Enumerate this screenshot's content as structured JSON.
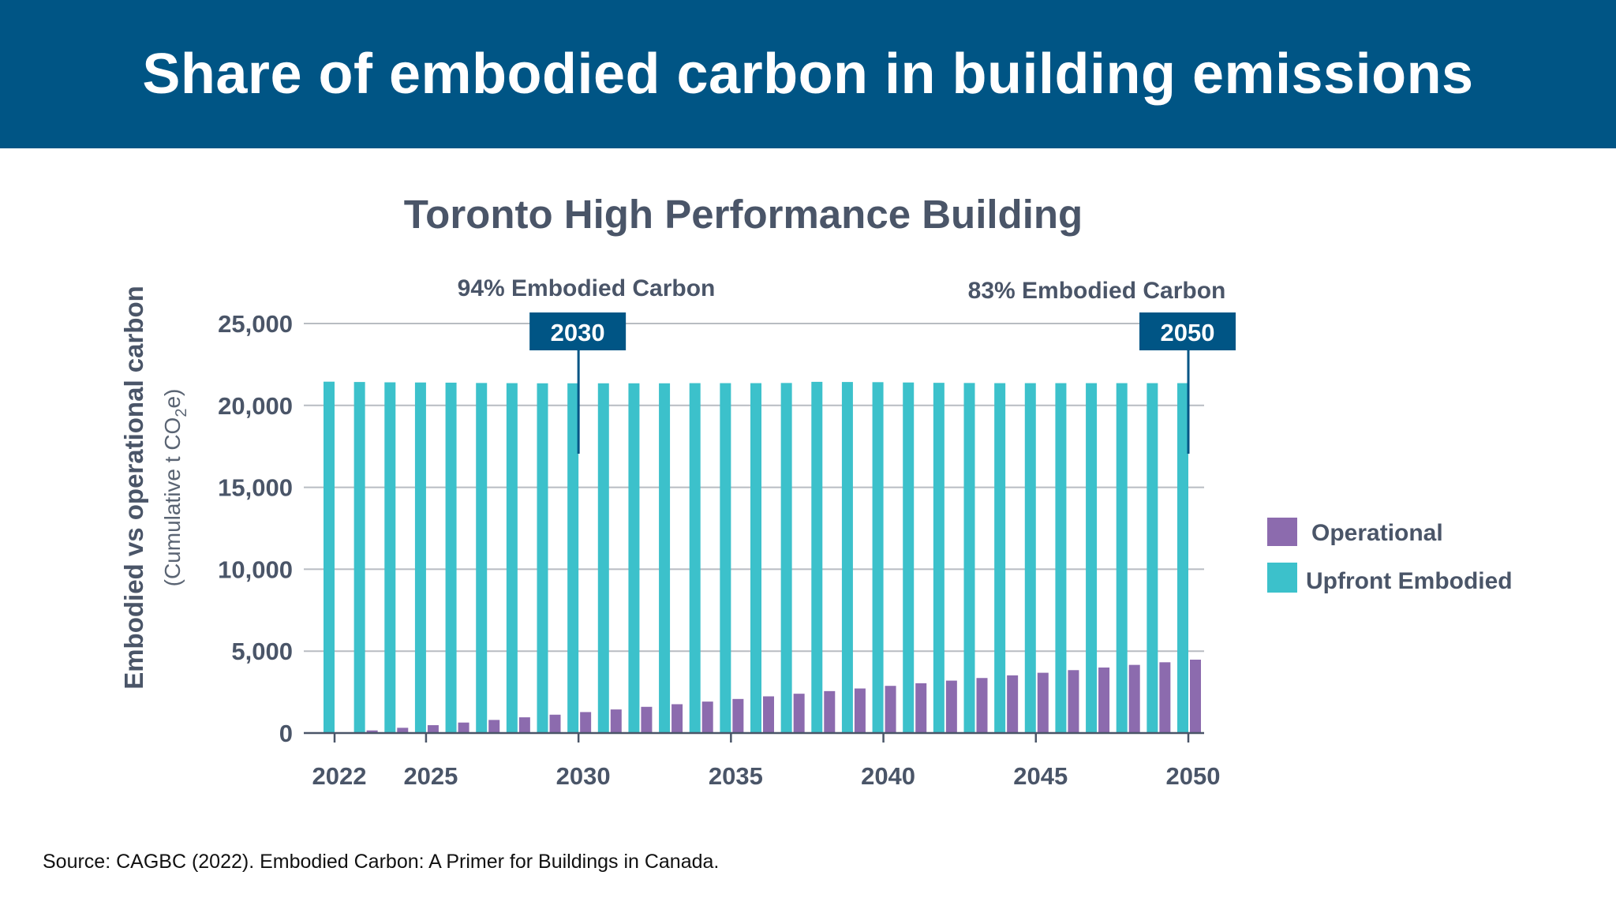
{
  "header": {
    "title": "Share of embodied carbon in building emissions"
  },
  "source": "Source: CAGBC (2022). Embodied Carbon: A Primer for Buildings in Canada.",
  "colors": {
    "banner": "#005585",
    "operational": "#8c6bae",
    "upfront_embodied": "#3cc1cb",
    "annotation_box": "#005585"
  },
  "chart_data": {
    "type": "bar",
    "title": "Toronto High Performance Building",
    "ylabel": "Embodied vs operational carbon",
    "ylabel_sub": "(Cumulative t CO",
    "ylabel_sub_subscript": "2",
    "ylabel_sub_tail": "e)",
    "xlabel": "",
    "ylim": [
      0,
      25000
    ],
    "yticks": [
      0,
      5000,
      10000,
      15000,
      20000,
      25000
    ],
    "ytick_labels": [
      "0",
      "5,000",
      "10,000",
      "15,000",
      "20,000",
      "25,000"
    ],
    "xtick_labels": [
      "2022",
      "2025",
      "2030",
      "2035",
      "2040",
      "2045",
      "2050"
    ],
    "grid": true,
    "legend_position": "right",
    "categories": [
      2022,
      2023,
      2024,
      2025,
      2026,
      2027,
      2028,
      2029,
      2030,
      2031,
      2032,
      2033,
      2034,
      2035,
      2036,
      2037,
      2038,
      2039,
      2040,
      2041,
      2042,
      2043,
      2044,
      2045,
      2046,
      2047,
      2048,
      2049,
      2050
    ],
    "series": [
      {
        "name": "Operational",
        "values": [
          0,
          160,
          320,
          480,
          640,
          800,
          960,
          1120,
          1280,
          1440,
          1600,
          1760,
          1920,
          2080,
          2240,
          2400,
          2560,
          2720,
          2880,
          3040,
          3200,
          3360,
          3520,
          3680,
          3840,
          4000,
          4160,
          4320,
          4480
        ]
      },
      {
        "name": "Upfront Embodied",
        "values": [
          21450,
          21430,
          21410,
          21400,
          21390,
          21370,
          21360,
          21350,
          21350,
          21350,
          21350,
          21350,
          21360,
          21360,
          21360,
          21370,
          21440,
          21430,
          21420,
          21400,
          21380,
          21370,
          21360,
          21360,
          21360,
          21360,
          21360,
          21360,
          21360
        ]
      }
    ],
    "annotations": [
      {
        "text": "94% Embodied Carbon",
        "year_label": "2030",
        "x": 2030
      },
      {
        "text": "83% Embodied Carbon",
        "year_label": "2050",
        "x": 2050
      }
    ]
  }
}
